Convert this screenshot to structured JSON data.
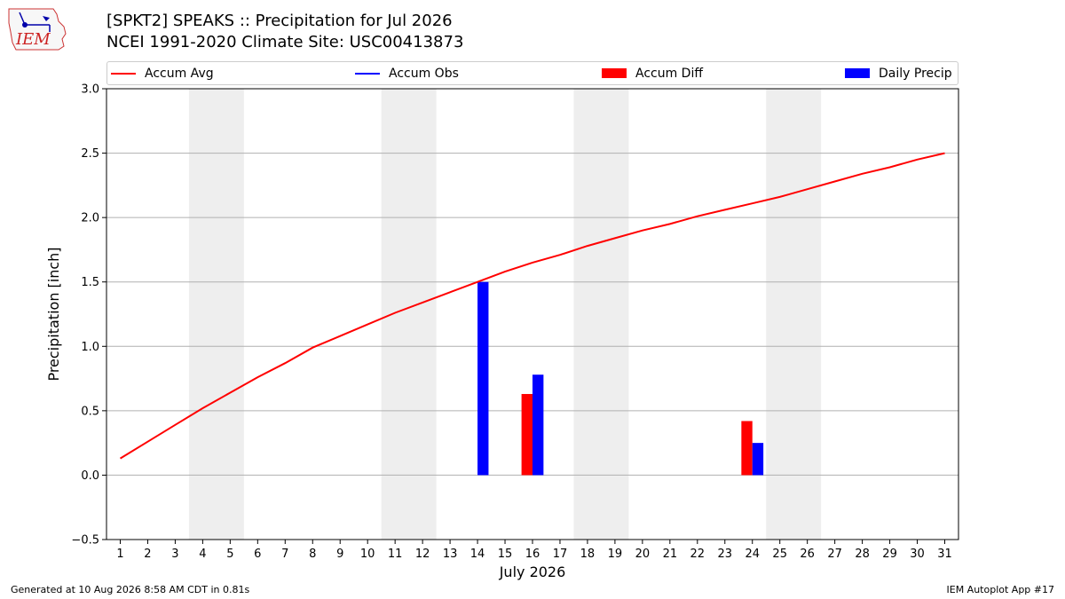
{
  "header": {
    "logo_text": "IEM",
    "title_line1": "[SPKT2] SPEAKS :: Precipitation for Jul 2026",
    "title_line2": "NCEI 1991-2020 Climate Site: USC00413873"
  },
  "legend": {
    "accum_avg": "Accum Avg",
    "accum_obs": "Accum Obs",
    "accum_diff": "Accum Diff",
    "daily_precip": "Daily Precip"
  },
  "footer": {
    "generated": "Generated at 10 Aug 2026 8:58 AM CDT in 0.81s",
    "app": "IEM Autoplot App #17"
  },
  "colors": {
    "accum_avg": "#ff0000",
    "accum_obs": "#0000ff",
    "accum_diff": "#ff0000",
    "daily_precip": "#0000ff",
    "weekend_shade": "#eeeeee",
    "grid": "#b0b0b0"
  },
  "chart_data": {
    "type": "bar",
    "xlabel": "July 2026",
    "ylabel": "Precipitation [inch]",
    "xlim": [
      0.5,
      31.5
    ],
    "ylim": [
      -0.5,
      3.0
    ],
    "x_ticks": [
      1,
      2,
      3,
      4,
      5,
      6,
      7,
      8,
      9,
      10,
      11,
      12,
      13,
      14,
      15,
      16,
      17,
      18,
      19,
      20,
      21,
      22,
      23,
      24,
      25,
      26,
      27,
      28,
      29,
      30,
      31
    ],
    "y_ticks": [
      -0.5,
      0.0,
      0.5,
      1.0,
      1.5,
      2.0,
      2.5,
      3.0
    ],
    "y_tick_labels": [
      "−0.5",
      "0.0",
      "0.5",
      "1.0",
      "1.5",
      "2.0",
      "2.5",
      "3.0"
    ],
    "grid": "horizontal",
    "legend_position": "top",
    "weekend_shading": [
      [
        3.5,
        5.5
      ],
      [
        10.5,
        12.5
      ],
      [
        17.5,
        19.5
      ],
      [
        24.5,
        26.5
      ]
    ],
    "series": [
      {
        "name": "Accum Avg",
        "type": "line",
        "x": [
          1,
          2,
          3,
          4,
          5,
          6,
          7,
          8,
          9,
          10,
          11,
          12,
          13,
          14,
          15,
          16,
          17,
          18,
          19,
          20,
          21,
          22,
          23,
          24,
          25,
          26,
          27,
          28,
          29,
          30,
          31
        ],
        "values": [
          0.13,
          0.26,
          0.39,
          0.52,
          0.64,
          0.76,
          0.87,
          0.99,
          1.08,
          1.17,
          1.26,
          1.34,
          1.42,
          1.5,
          1.58,
          1.65,
          1.71,
          1.78,
          1.84,
          1.9,
          1.95,
          2.01,
          2.06,
          2.11,
          2.16,
          2.22,
          2.28,
          2.34,
          2.39,
          2.45,
          2.5
        ]
      },
      {
        "name": "Accum Diff",
        "type": "bar",
        "x": [
          16,
          24
        ],
        "values": [
          0.63,
          0.42
        ]
      },
      {
        "name": "Daily Precip",
        "type": "bar",
        "x": [
          14,
          16,
          24
        ],
        "values": [
          1.5,
          0.78,
          0.25
        ]
      }
    ]
  }
}
